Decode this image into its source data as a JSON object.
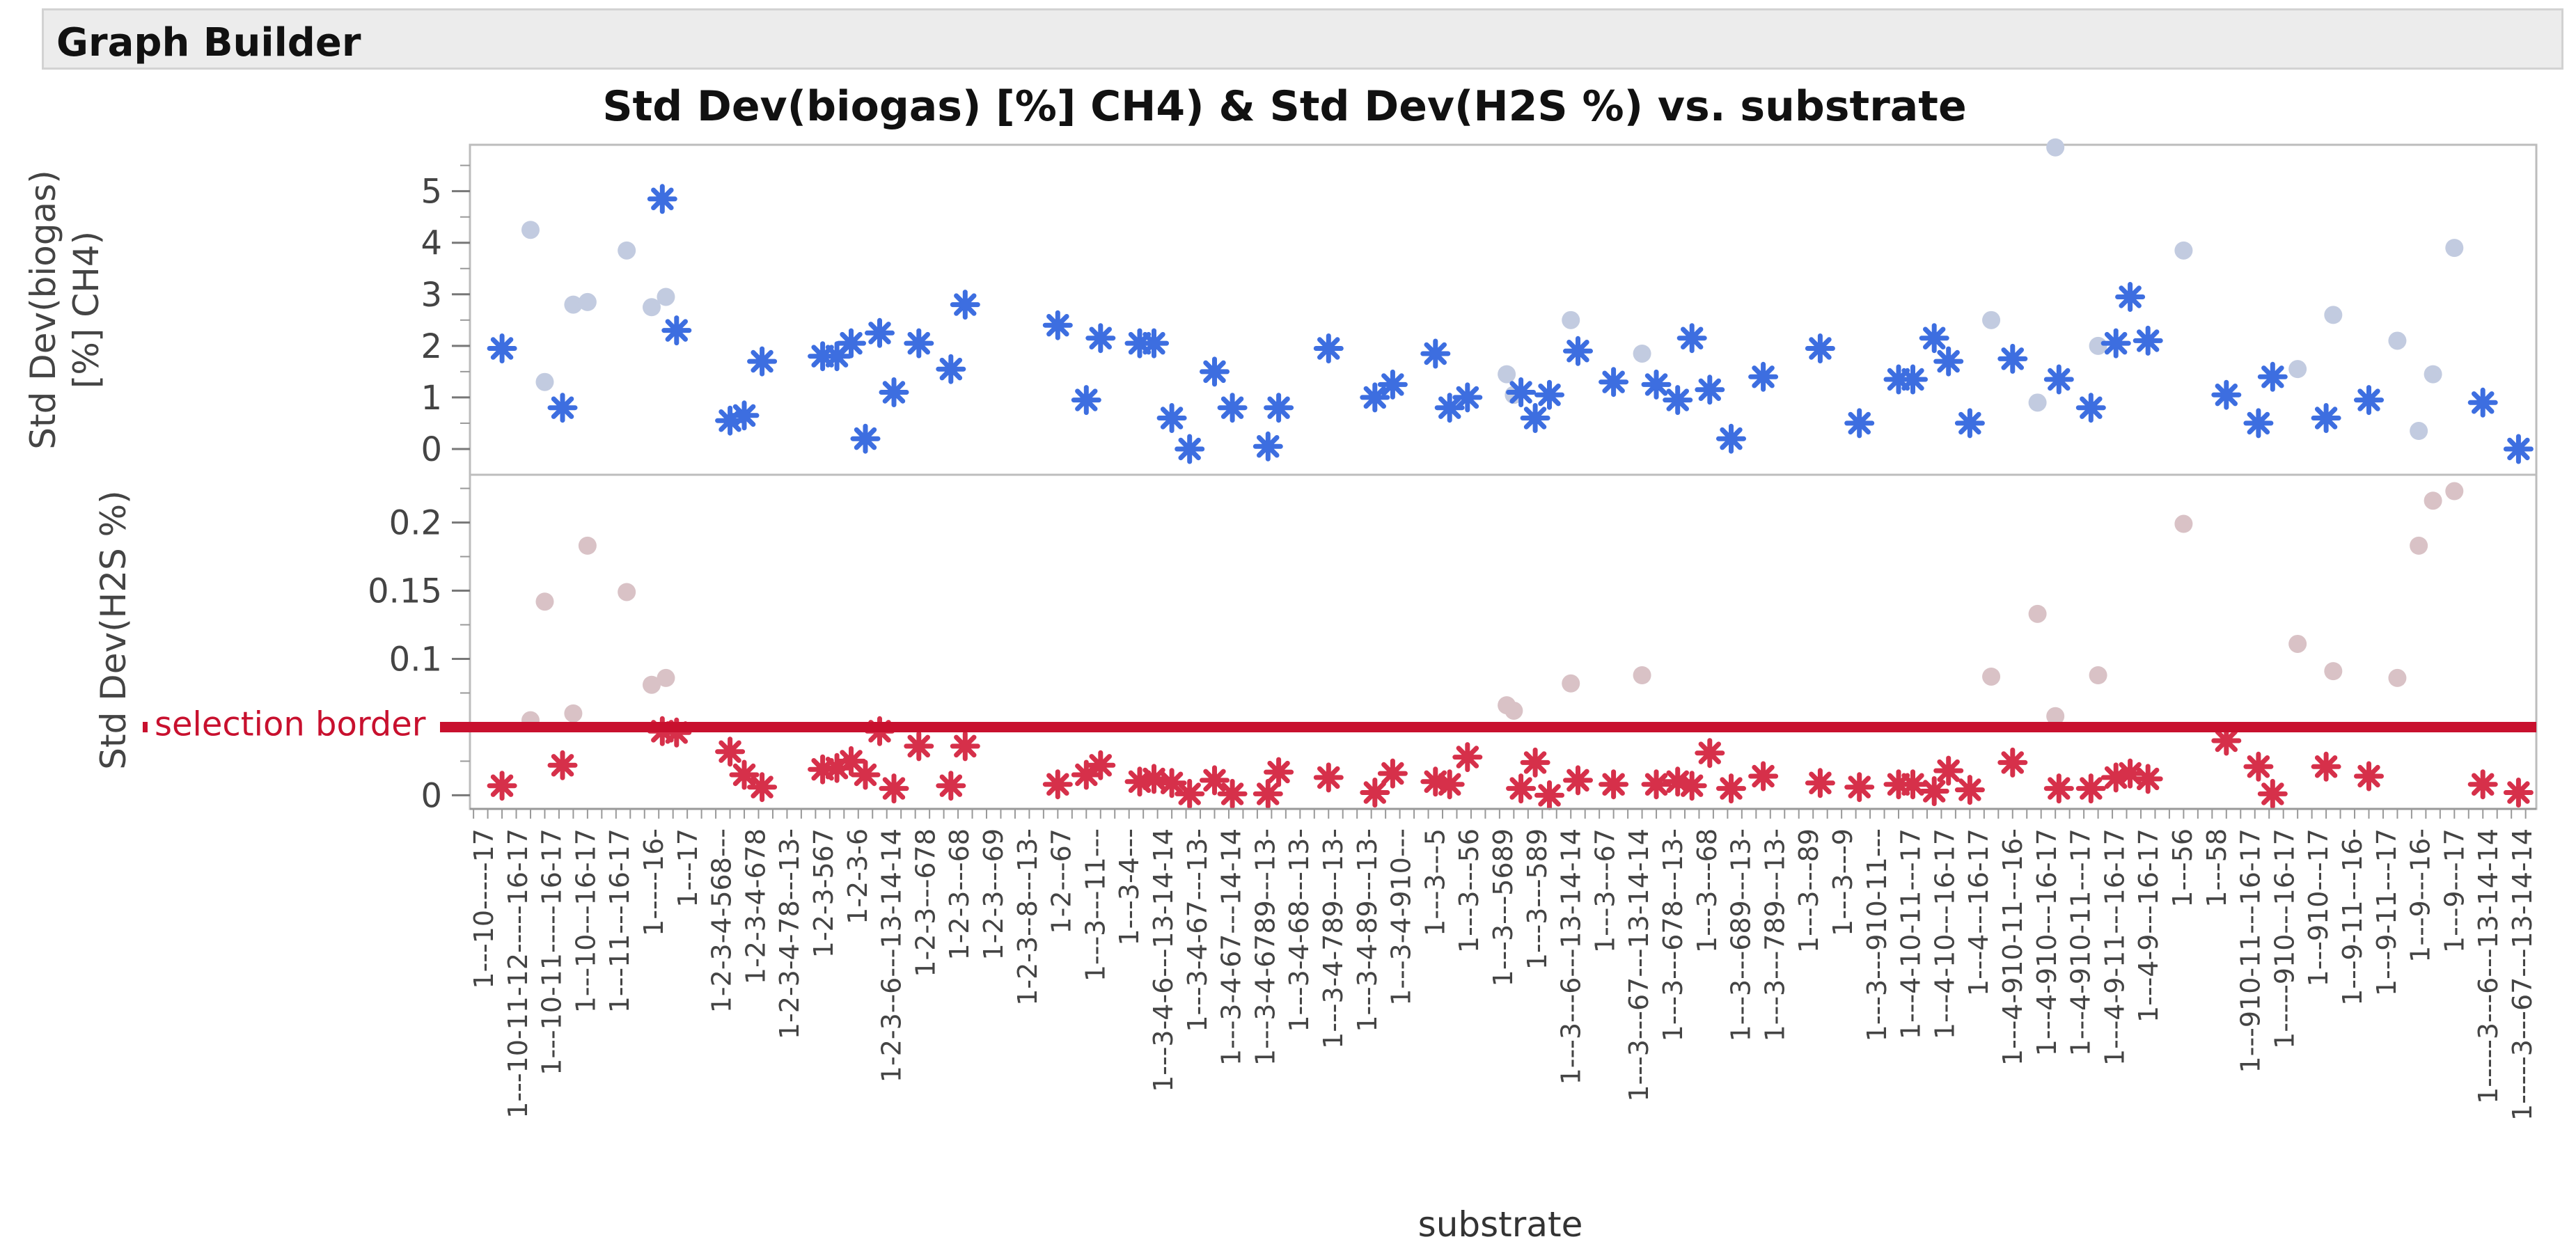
{
  "window": {
    "title": "Graph Builder"
  },
  "chart_data": {
    "type": "scatter",
    "title": "Std Dev(biogas) [%] CH4) & Std Dev(H2S %) vs. substrate",
    "xlabel": "substrate",
    "annotation": "selection border",
    "legend": "none",
    "colors": {
      "top_selected": "#3d6ee0",
      "top_unselected": "#c2cbe0",
      "bottom_selected": "#d6304a",
      "bottom_unselected": "#d9c2c6",
      "border": "#c8102e",
      "grid": "#bfbfbf"
    },
    "x_tick_labels": [
      "1---10-----17",
      "1---10-11-12-----16-17",
      "1---10-11-----16-17",
      "1---10---16-17",
      "1---11---16-17",
      "1-----16-",
      "1---17",
      "1-2-3-4-568---",
      "1-2-3-4-678",
      "1-2-3-4-78---13-",
      "1-2-3-567",
      "1-2-3-6",
      "1-2-3--6---13-14-14",
      "1-2-3---678",
      "1-2-3---68",
      "1-2-3---69",
      "1-2-3--8---13-",
      "1-2---67",
      "1---3---11---",
      "1---3-4---",
      "1---3-4-6---13-14-14",
      "1---3-4-67---13-",
      "1---3-4-67---14-14",
      "1---3-4-6789---13-",
      "1---3-4-68---13-",
      "1---3-4-789---13-",
      "1---3-4-89---13-",
      "1---3-4-910---",
      "1---3---5",
      "1---3---56",
      "1---3---5689",
      "1---3---589",
      "1---3---6---13-14-14",
      "1---3---67",
      "1---3---67---13-14-14",
      "1---3---678---13-",
      "1---3---68",
      "1---3---689---13-",
      "1---3---789---13-",
      "1---3---89",
      "1---3---9",
      "1---3---910-11---",
      "1---4-10-11---17",
      "1---4-10---16-17",
      "1---4---16-17",
      "1---4-910-11---16-",
      "1---4-910---16-17",
      "1---4-910-11---17",
      "1---4-9-11---16-17",
      "1---4-9---16-17",
      "1---56",
      "1---58",
      "1---910-11---16-17",
      "1-----910---16-17",
      "1---910---17",
      "1---9-11---16-",
      "1---9-11---17",
      "1---9---16-",
      "1---9---17",
      "1-----3---6---13-14-14",
      "1-----3---67---13-14-14"
    ],
    "panels": [
      {
        "ylabel": [
          "Std Dev(biogas)",
          "[%] CH4)"
        ],
        "ylim": [
          -0.5,
          5.9
        ],
        "yticks": [
          "5",
          "4",
          "3",
          "2",
          "1",
          "0"
        ],
        "selected_points": [
          [
            4,
            1.95
          ],
          [
            12.5,
            0.8
          ],
          [
            26.5,
            4.85
          ],
          [
            28.5,
            2.3
          ],
          [
            36,
            0.55
          ],
          [
            38,
            0.65
          ],
          [
            40.5,
            1.7
          ],
          [
            49,
            1.8
          ],
          [
            51,
            1.8
          ],
          [
            53,
            2.05
          ],
          [
            55,
            0.2
          ],
          [
            57,
            2.25
          ],
          [
            59,
            1.1
          ],
          [
            62.5,
            2.05
          ],
          [
            67,
            1.55
          ],
          [
            69,
            2.8
          ],
          [
            82,
            2.4
          ],
          [
            86,
            0.95
          ],
          [
            88,
            2.15
          ],
          [
            93.5,
            2.05
          ],
          [
            95.5,
            2.05
          ],
          [
            98,
            0.6
          ],
          [
            100.5,
            0.0
          ],
          [
            104,
            1.5
          ],
          [
            106.5,
            0.8
          ],
          [
            111.5,
            0.05
          ],
          [
            113,
            0.8
          ],
          [
            120,
            1.95
          ],
          [
            126.5,
            1.0
          ],
          [
            129,
            1.25
          ],
          [
            135,
            1.85
          ],
          [
            137,
            0.8
          ],
          [
            139.5,
            1.0
          ],
          [
            147,
            1.1
          ],
          [
            149,
            0.6
          ],
          [
            151,
            1.05
          ],
          [
            155,
            1.9
          ],
          [
            160,
            1.3
          ],
          [
            166,
            1.25
          ],
          [
            169,
            0.95
          ],
          [
            171,
            2.15
          ],
          [
            173.5,
            1.15
          ],
          [
            176.5,
            0.2
          ],
          [
            181,
            1.4
          ],
          [
            189,
            1.95
          ],
          [
            194.5,
            0.5
          ],
          [
            200,
            1.35
          ],
          [
            202,
            1.35
          ],
          [
            205,
            2.15
          ],
          [
            207,
            1.7
          ],
          [
            210,
            0.5
          ],
          [
            216,
            1.75
          ],
          [
            222.5,
            1.35
          ],
          [
            227,
            0.8
          ],
          [
            230.5,
            2.05
          ],
          [
            232.5,
            2.95
          ],
          [
            235,
            2.1
          ],
          [
            246,
            1.05
          ],
          [
            250.5,
            0.5
          ],
          [
            252.5,
            1.4
          ],
          [
            260,
            0.6
          ],
          [
            266,
            0.95
          ],
          [
            282,
            0.9
          ],
          [
            287,
            0.0
          ]
        ],
        "unselected_points": [
          [
            8,
            4.25
          ],
          [
            10,
            1.3
          ],
          [
            14,
            2.8
          ],
          [
            16,
            2.85
          ],
          [
            21.5,
            3.85
          ],
          [
            25,
            2.75
          ],
          [
            27,
            2.95
          ],
          [
            145,
            1.45
          ],
          [
            146,
            1.05
          ],
          [
            154,
            2.5
          ],
          [
            164,
            1.85
          ],
          [
            213,
            2.5
          ],
          [
            219.5,
            0.9
          ],
          [
            222,
            5.85
          ],
          [
            228,
            2.0
          ],
          [
            240,
            3.85
          ],
          [
            256,
            1.55
          ],
          [
            261,
            2.6
          ],
          [
            270,
            2.1
          ],
          [
            273,
            0.35
          ],
          [
            275,
            1.45
          ],
          [
            278,
            3.9
          ]
        ]
      },
      {
        "ylabel": [
          "Std Dev(H2S %)"
        ],
        "ylim": [
          -0.01,
          0.235
        ],
        "yticks": [
          "0.2",
          "0.15",
          "0.1",
          "0.05",
          "0"
        ],
        "selected_points": [
          [
            4,
            0.007
          ],
          [
            12.5,
            0.022
          ],
          [
            26.5,
            0.047
          ],
          [
            28.5,
            0.046
          ],
          [
            36,
            0.032
          ],
          [
            38,
            0.015
          ],
          [
            40.5,
            0.006
          ],
          [
            49,
            0.019
          ],
          [
            51,
            0.02
          ],
          [
            53,
            0.025
          ],
          [
            55,
            0.015
          ],
          [
            57,
            0.047
          ],
          [
            59,
            0.005
          ],
          [
            62.5,
            0.036
          ],
          [
            67,
            0.007
          ],
          [
            69,
            0.036
          ],
          [
            82,
            0.008
          ],
          [
            86,
            0.015
          ],
          [
            88,
            0.022
          ],
          [
            93.5,
            0.01
          ],
          [
            95.5,
            0.012
          ],
          [
            98,
            0.009
          ],
          [
            100.5,
            0.001
          ],
          [
            104,
            0.011
          ],
          [
            106.5,
            0.001
          ],
          [
            111.5,
            0.001
          ],
          [
            113,
            0.017
          ],
          [
            120,
            0.013
          ],
          [
            126.5,
            0.002
          ],
          [
            129,
            0.016
          ],
          [
            135,
            0.01
          ],
          [
            137,
            0.008
          ],
          [
            139.5,
            0.028
          ],
          [
            147,
            0.005
          ],
          [
            149,
            0.024
          ],
          [
            151,
            0.0
          ],
          [
            155,
            0.011
          ],
          [
            160,
            0.008
          ],
          [
            166,
            0.008
          ],
          [
            169,
            0.01
          ],
          [
            171,
            0.007
          ],
          [
            173.5,
            0.031
          ],
          [
            176.5,
            0.005
          ],
          [
            181,
            0.014
          ],
          [
            189,
            0.009
          ],
          [
            194.5,
            0.006
          ],
          [
            200,
            0.008
          ],
          [
            202,
            0.008
          ],
          [
            205,
            0.003
          ],
          [
            207,
            0.018
          ],
          [
            210,
            0.004
          ],
          [
            216,
            0.024
          ],
          [
            222.5,
            0.005
          ],
          [
            227,
            0.005
          ],
          [
            230.5,
            0.013
          ],
          [
            232.5,
            0.016
          ],
          [
            235,
            0.012
          ],
          [
            246,
            0.04
          ],
          [
            250.5,
            0.021
          ],
          [
            252.5,
            0.001
          ],
          [
            260,
            0.021
          ],
          [
            266,
            0.014
          ],
          [
            282,
            0.008
          ],
          [
            287,
            0.002
          ]
        ],
        "unselected_points": [
          [
            8,
            0.055
          ],
          [
            10,
            0.142
          ],
          [
            14,
            0.06
          ],
          [
            16,
            0.183
          ],
          [
            21.5,
            0.149
          ],
          [
            25,
            0.081
          ],
          [
            27,
            0.086
          ],
          [
            145,
            0.066
          ],
          [
            146,
            0.062
          ],
          [
            154,
            0.082
          ],
          [
            164,
            0.088
          ],
          [
            213,
            0.087
          ],
          [
            219.5,
            0.133
          ],
          [
            222,
            0.058
          ],
          [
            228,
            0.088
          ],
          [
            240,
            0.199
          ],
          [
            256,
            0.111
          ],
          [
            261,
            0.091
          ],
          [
            270,
            0.086
          ],
          [
            273,
            0.183
          ],
          [
            275,
            0.216
          ],
          [
            278,
            0.223
          ]
        ],
        "reference_line": {
          "value": 0.05,
          "label": "selection border"
        }
      }
    ]
  }
}
